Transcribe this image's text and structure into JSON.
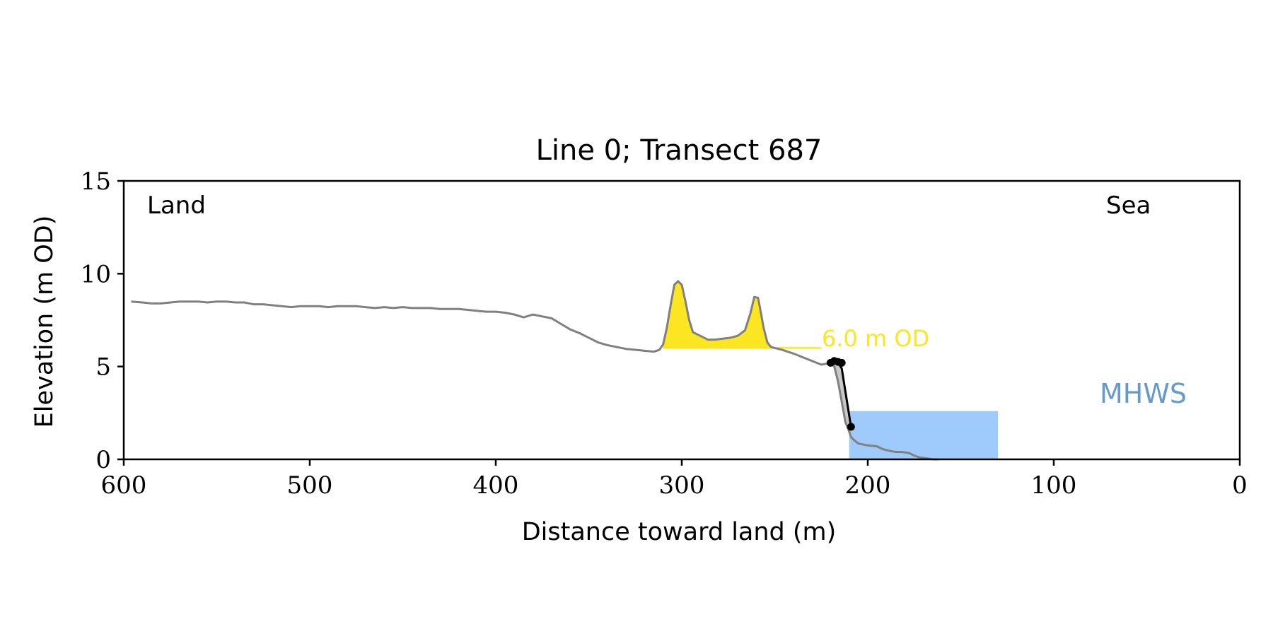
{
  "chart_data": {
    "type": "line",
    "title": "Line 0; Transect 687",
    "xlabel": "Distance toward land (m)",
    "ylabel": "Elevation (m OD)",
    "xlim": [
      600,
      0
    ],
    "ylim": [
      0,
      15
    ],
    "x_inverted": true,
    "grid": false,
    "xticks": [
      600,
      500,
      400,
      300,
      200,
      100,
      0
    ],
    "yticks": [
      0,
      5,
      10,
      15
    ],
    "annotations": {
      "land": "Land",
      "sea": "Sea",
      "threshold_label": "6.0 m OD",
      "mhws_label": "MHWS"
    },
    "threshold": {
      "elevation": 6.0,
      "x_from": 310,
      "x_to": 225
    },
    "mhws_band": {
      "x_from": 210,
      "x_to": 130,
      "y_top": 2.6
    },
    "profile": {
      "x": [
        596,
        590,
        585,
        580,
        575,
        570,
        565,
        560,
        555,
        550,
        545,
        540,
        535,
        530,
        525,
        520,
        515,
        510,
        505,
        500,
        495,
        490,
        485,
        480,
        475,
        470,
        465,
        460,
        455,
        450,
        445,
        440,
        435,
        430,
        425,
        420,
        415,
        410,
        405,
        400,
        395,
        390,
        385,
        380,
        375,
        370,
        365,
        360,
        355,
        350,
        345,
        340,
        335,
        330,
        325,
        320,
        315,
        312,
        310,
        308,
        306,
        304,
        302,
        300,
        298,
        296,
        294,
        292,
        290,
        286,
        282,
        278,
        274,
        270,
        266,
        263,
        261,
        259,
        258,
        256,
        254,
        252,
        250,
        246,
        240,
        235,
        230,
        225,
        220,
        218,
        216,
        214,
        212,
        210,
        209,
        207,
        205,
        200,
        195,
        192,
        188,
        185,
        182,
        178,
        175,
        172,
        168,
        165,
        162
      ],
      "y": [
        8.5,
        8.45,
        8.4,
        8.4,
        8.45,
        8.5,
        8.5,
        8.5,
        8.45,
        8.5,
        8.5,
        8.45,
        8.45,
        8.35,
        8.35,
        8.3,
        8.25,
        8.2,
        8.25,
        8.25,
        8.25,
        8.2,
        8.25,
        8.25,
        8.25,
        8.2,
        8.15,
        8.2,
        8.15,
        8.2,
        8.15,
        8.15,
        8.15,
        8.1,
        8.1,
        8.1,
        8.05,
        8.0,
        7.95,
        7.95,
        7.9,
        7.8,
        7.65,
        7.8,
        7.7,
        7.6,
        7.3,
        7.0,
        6.8,
        6.55,
        6.3,
        6.15,
        6.05,
        5.95,
        5.9,
        5.85,
        5.8,
        5.9,
        6.2,
        7.1,
        8.3,
        9.4,
        9.6,
        9.4,
        8.5,
        7.5,
        6.85,
        6.75,
        6.65,
        6.45,
        6.45,
        6.5,
        6.55,
        6.65,
        6.95,
        7.9,
        8.75,
        8.7,
        8.2,
        7.1,
        6.3,
        6.05,
        6.0,
        5.9,
        5.7,
        5.5,
        5.3,
        5.1,
        5.2,
        5.0,
        4.2,
        3.1,
        2.0,
        1.5,
        1.2,
        1.0,
        0.85,
        0.75,
        0.7,
        0.55,
        0.45,
        0.4,
        0.4,
        0.35,
        0.2,
        0.1,
        0.05,
        0.0,
        0.0
      ]
    },
    "eroded_path": {
      "x": [
        220,
        218,
        216,
        214,
        209
      ],
      "y": [
        5.2,
        5.25,
        5.2,
        4.9,
        1.75
      ]
    },
    "eroded_points": {
      "x": [
        220,
        218,
        216,
        214,
        209
      ],
      "y": [
        5.2,
        5.3,
        5.25,
        5.2,
        1.75
      ]
    },
    "colors": {
      "profile": "#808080",
      "above_threshold_fill": "#fce621",
      "threshold_line": "#fce621",
      "mhws_fill": "#9ecbfc",
      "mhws_label": "#6699cc",
      "eroded_fill": "#c8c8c8",
      "eroded_line": "#000000",
      "axis": "#000000"
    }
  }
}
